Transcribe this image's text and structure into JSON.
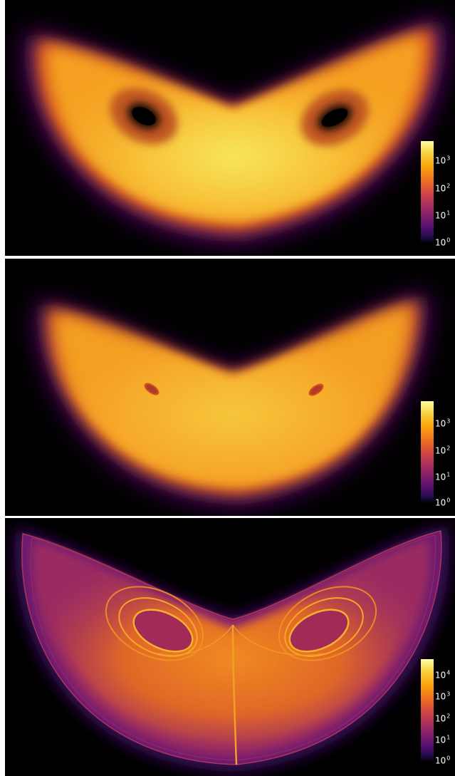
{
  "panels": [
    {
      "colorbar": {
        "ticks": [
          {
            "base": "10",
            "exp": "3"
          },
          {
            "base": "10",
            "exp": "2"
          },
          {
            "base": "10",
            "exp": "1"
          },
          {
            "base": "10",
            "exp": "0"
          }
        ]
      }
    },
    {
      "colorbar": {
        "ticks": [
          {
            "base": "10",
            "exp": "3"
          },
          {
            "base": "10",
            "exp": "2"
          },
          {
            "base": "10",
            "exp": "1"
          },
          {
            "base": "10",
            "exp": "0"
          }
        ]
      }
    },
    {
      "colorbar": {
        "ticks": [
          {
            "base": "10",
            "exp": "4"
          },
          {
            "base": "10",
            "exp": "3"
          },
          {
            "base": "10",
            "exp": "2"
          },
          {
            "base": "10",
            "exp": "1"
          },
          {
            "base": "10",
            "exp": "0"
          }
        ]
      }
    }
  ],
  "colormap": {
    "name": "inferno",
    "stops": [
      "#000004",
      "#1b0c41",
      "#4a0c6b",
      "#781c6d",
      "#a52c60",
      "#cf4446",
      "#ed6925",
      "#fba40a",
      "#f7d13d",
      "#fcffa4"
    ]
  },
  "colorbar_scale": "log"
}
